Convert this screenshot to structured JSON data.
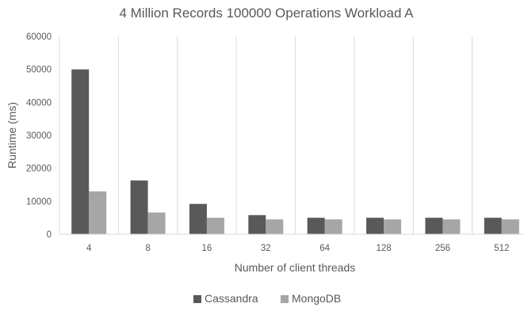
{
  "chart_data": {
    "type": "bar",
    "title": "4 Million Records 100000 Operations Workload A",
    "xlabel": "Number of client threads",
    "ylabel": "Runtime (ms)",
    "categories": [
      "4",
      "8",
      "16",
      "32",
      "64",
      "128",
      "256",
      "512"
    ],
    "series": [
      {
        "name": "Cassandra",
        "color": "#595959",
        "values": [
          50000,
          16300,
          9200,
          5800,
          5000,
          5000,
          5000,
          5000
        ]
      },
      {
        "name": "MongoDB",
        "color": "#a6a6a6",
        "values": [
          13000,
          6600,
          5000,
          4500,
          4500,
          4500,
          4500,
          4500
        ]
      }
    ],
    "ylim": [
      0,
      60000
    ],
    "yticks": [
      "0",
      "10000",
      "20000",
      "30000",
      "40000",
      "50000",
      "60000"
    ],
    "grid": "vertical category separators",
    "legend_position": "bottom"
  }
}
